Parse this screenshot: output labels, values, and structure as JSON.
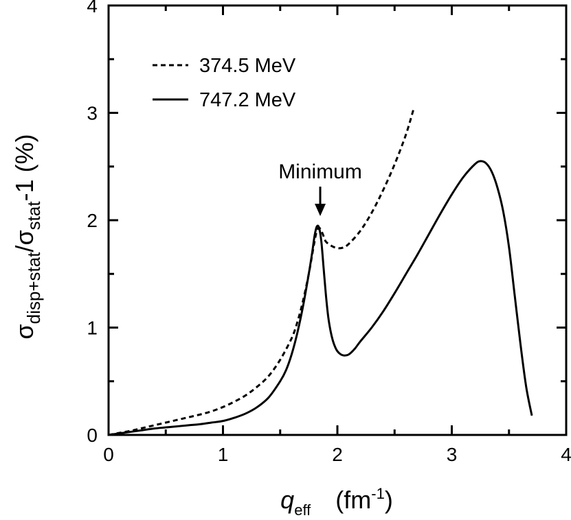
{
  "chart_data": {
    "type": "line",
    "title": "",
    "xlabel_symbol": "q",
    "xlabel_subscript": "eff",
    "xlabel_unit_prefix": "(fm",
    "xlabel_unit_exponent": "-1",
    "xlabel_unit_suffix": ")",
    "ylabel_sigma1": "σ",
    "ylabel_sub1": "disp+stat",
    "ylabel_slash": "/",
    "ylabel_sigma2": "σ",
    "ylabel_sub2": "stat",
    "ylabel_tail": "-1 (%)",
    "xlim": [
      0,
      4
    ],
    "ylim": [
      0,
      4
    ],
    "xticks": [
      0,
      1,
      2,
      3,
      4
    ],
    "yticks": [
      0,
      1,
      2,
      3,
      4
    ],
    "xtick_labels": [
      "0",
      "1",
      "2",
      "3",
      "4"
    ],
    "ytick_labels": [
      "0",
      "1",
      "2",
      "3",
      "4"
    ],
    "minor_xticks": [
      0.5,
      1.5,
      2.5,
      3.5
    ],
    "minor_yticks": [
      0.5,
      1.5,
      2.5,
      3.5
    ],
    "legend_position": "top-left",
    "series": [
      {
        "name": "374.5 MeV",
        "style": "dashed",
        "color": "#000000",
        "x": [
          0.0,
          0.1,
          0.2,
          0.3,
          0.4,
          0.5,
          0.6,
          0.7,
          0.8,
          0.9,
          1.0,
          1.1,
          1.2,
          1.3,
          1.4,
          1.5,
          1.6,
          1.65,
          1.7,
          1.75,
          1.78,
          1.8,
          1.82,
          1.84,
          1.86,
          1.88,
          1.9,
          1.95,
          2.0,
          2.05,
          2.1,
          2.2,
          2.3,
          2.4,
          2.5,
          2.6,
          2.67
        ],
        "y": [
          0.0,
          0.02,
          0.04,
          0.065,
          0.09,
          0.115,
          0.14,
          0.165,
          0.19,
          0.22,
          0.26,
          0.31,
          0.37,
          0.45,
          0.55,
          0.7,
          0.9,
          1.05,
          1.25,
          1.5,
          1.68,
          1.8,
          1.9,
          1.93,
          1.9,
          1.85,
          1.8,
          1.76,
          1.74,
          1.745,
          1.78,
          1.9,
          2.07,
          2.28,
          2.52,
          2.8,
          3.05
        ]
      },
      {
        "name": "747.2 MeV",
        "style": "solid",
        "color": "#000000",
        "x": [
          0.0,
          0.1,
          0.2,
          0.3,
          0.4,
          0.5,
          0.6,
          0.7,
          0.8,
          0.9,
          1.0,
          1.1,
          1.2,
          1.3,
          1.4,
          1.5,
          1.55,
          1.6,
          1.65,
          1.7,
          1.75,
          1.78,
          1.8,
          1.82,
          1.84,
          1.86,
          1.88,
          1.9,
          1.92,
          1.94,
          1.96,
          1.98,
          2.0,
          2.03,
          2.06,
          2.1,
          2.15,
          2.2,
          2.3,
          2.4,
          2.5,
          2.6,
          2.7,
          2.8,
          2.9,
          3.0,
          3.1,
          3.2,
          3.25,
          3.3,
          3.35,
          3.4,
          3.45,
          3.5,
          3.55,
          3.6,
          3.65,
          3.7
        ],
        "y": [
          0.0,
          0.015,
          0.03,
          0.045,
          0.06,
          0.07,
          0.08,
          0.09,
          0.1,
          0.115,
          0.13,
          0.16,
          0.2,
          0.26,
          0.35,
          0.5,
          0.6,
          0.75,
          0.95,
          1.2,
          1.5,
          1.7,
          1.85,
          1.94,
          1.93,
          1.8,
          1.55,
          1.3,
          1.1,
          0.97,
          0.88,
          0.82,
          0.78,
          0.75,
          0.74,
          0.75,
          0.8,
          0.87,
          1.0,
          1.15,
          1.32,
          1.5,
          1.68,
          1.87,
          2.06,
          2.24,
          2.4,
          2.52,
          2.55,
          2.53,
          2.45,
          2.3,
          2.08,
          1.75,
          1.3,
          0.85,
          0.45,
          0.18
        ]
      }
    ],
    "annotations": [
      {
        "text": "Minimum",
        "arrow_from": [
          1.85,
          2.3
        ],
        "arrow_to": [
          1.85,
          2.0
        ]
      }
    ]
  }
}
